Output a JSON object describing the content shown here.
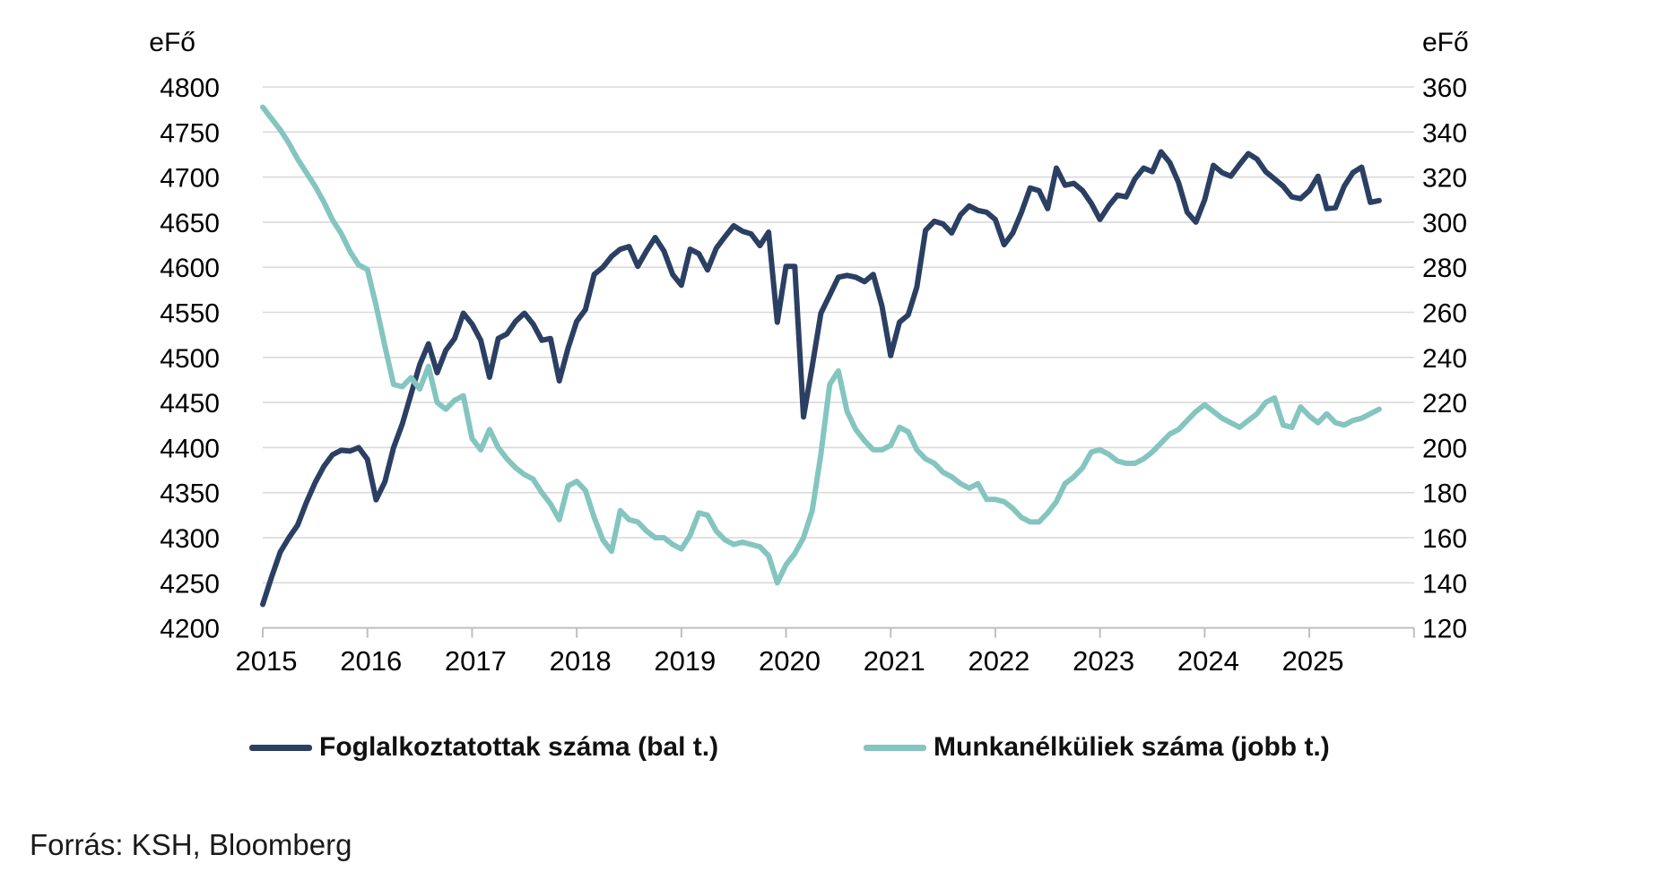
{
  "chart_data": {
    "type": "line",
    "title": "",
    "grid": true,
    "legend_position": "bottom",
    "x_start": "2015-01",
    "x_frequency": "monthly",
    "x_tick_years": [
      "2015",
      "2016",
      "2017",
      "2018",
      "2019",
      "2020",
      "2021",
      "2022",
      "2023",
      "2024",
      "2025"
    ],
    "left_axis": {
      "unit_label": "eFő",
      "min": 4200,
      "max": 4800,
      "tick_step": 50
    },
    "right_axis": {
      "unit_label": "eFő",
      "min": 120,
      "max": 360,
      "tick_step": 20
    },
    "colors": {
      "employed": "#2b3f63",
      "unemployed": "#84c5bf",
      "gridline": "#d9d9d9",
      "axis": "#bfbfbf",
      "text": "#000000"
    },
    "series": [
      {
        "name": "Foglalkoztatottak száma (bal t.)",
        "axis": "left",
        "color": "#2b3f63",
        "values": [
          4226,
          4256,
          4284,
          4300,
          4314,
          4339,
          4361,
          4379,
          4392,
          4397,
          4396,
          4400,
          4387,
          4342,
          4362,
          4400,
          4426,
          4459,
          4492,
          4515,
          4483,
          4508,
          4521,
          4549,
          4537,
          4519,
          4478,
          4521,
          4526,
          4540,
          4549,
          4537,
          4519,
          4521,
          4474,
          4510,
          4540,
          4553,
          4592,
          4600,
          4612,
          4620,
          4623,
          4601,
          4618,
          4633,
          4618,
          4592,
          4580,
          4620,
          4615,
          4597,
          4621,
          4634,
          4646,
          4640,
          4637,
          4624,
          4639,
          4539,
          4601,
          4601,
          4434,
          4490,
          4549,
          4569,
          4589,
          4591,
          4589,
          4584,
          4592,
          4557,
          4502,
          4539,
          4547,
          4578,
          4641,
          4651,
          4648,
          4638,
          4658,
          4668,
          4663,
          4661,
          4653,
          4625,
          4638,
          4661,
          4688,
          4685,
          4665,
          4710,
          4691,
          4693,
          4685,
          4671,
          4653,
          4668,
          4680,
          4678,
          4698,
          4710,
          4706,
          4728,
          4716,
          4694,
          4661,
          4650,
          4675,
          4713,
          4705,
          4701,
          4714,
          4726,
          4720,
          4706,
          4698,
          4690,
          4678,
          4676,
          4685,
          4701,
          4665,
          4666,
          4690,
          4705,
          4711,
          4672,
          4674
        ]
      },
      {
        "name": "Munkanélküliek száma (jobb t.)",
        "axis": "right",
        "color": "#84c5bf",
        "values": [
          351,
          346,
          341,
          335,
          328,
          322,
          316,
          309,
          301,
          295,
          287,
          281,
          279,
          263,
          245,
          228,
          227,
          231,
          226,
          236,
          220,
          217,
          221,
          223,
          204,
          199,
          208,
          200,
          195,
          191,
          188,
          186,
          180,
          175,
          168,
          183,
          185,
          181,
          169,
          159,
          154,
          172,
          168,
          167,
          163,
          160,
          160,
          157,
          155,
          161,
          171,
          170,
          163,
          159,
          157,
          158,
          157,
          156,
          152,
          140,
          148,
          153,
          160,
          172,
          197,
          228,
          234,
          216,
          208,
          203,
          199,
          199,
          201,
          209,
          207,
          199,
          195,
          193,
          189,
          187,
          184,
          182,
          184,
          177,
          177,
          176,
          173,
          169,
          167,
          167,
          171,
          176,
          184,
          187,
          191,
          198,
          199,
          197,
          194,
          193,
          193,
          195,
          198,
          202,
          206,
          208,
          212,
          216,
          219,
          216,
          213,
          211,
          209,
          212,
          215,
          220,
          222,
          210,
          209,
          218,
          214,
          211,
          215,
          211,
          210,
          212,
          213,
          215,
          217
        ]
      }
    ]
  },
  "footer": {
    "source_text": "Forrás: KSH, Bloomberg"
  }
}
